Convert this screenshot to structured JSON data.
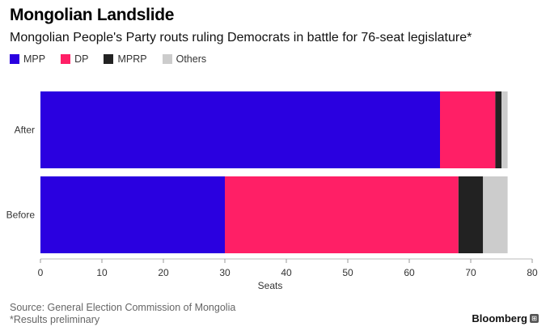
{
  "header": {
    "title": "Mongolian Landslide",
    "subtitle": "Mongolian People's Party routs ruling Democrats in battle for 76-seat legislature*"
  },
  "footer": {
    "source": "Source: General Election Commission of Mongolia",
    "note": "*Results preliminary",
    "brand": "Bloomberg",
    "brand_icon": "bloomberg-terminal-icon"
  },
  "chart_data": {
    "type": "bar",
    "orientation": "horizontal",
    "stacked": true,
    "title": "Mongolian Landslide",
    "subtitle": "Mongolian People's Party routs ruling Democrats in battle for 76-seat legislature*",
    "categories": [
      "After",
      "Before"
    ],
    "series": [
      {
        "name": "MPP",
        "color": "#2A00E0",
        "values": [
          65,
          30
        ]
      },
      {
        "name": "DP",
        "color": "#FF1F66",
        "values": [
          9,
          38
        ]
      },
      {
        "name": "MPRP",
        "color": "#222222",
        "values": [
          1,
          4
        ]
      },
      {
        "name": "Others",
        "color": "#CCCCCC",
        "values": [
          1,
          4
        ]
      }
    ],
    "xlabel": "Seats",
    "ylabel": "",
    "xlim": [
      0,
      80
    ],
    "xticks": [
      0,
      10,
      20,
      30,
      40,
      50,
      60,
      70,
      80
    ],
    "grid": false,
    "legend_position": "top-left"
  }
}
